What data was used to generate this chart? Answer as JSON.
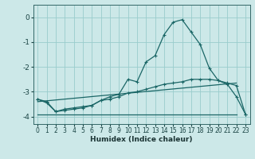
{
  "xlabel": "Humidex (Indice chaleur)",
  "bg_color": "#cce8e8",
  "grid_color": "#99cccc",
  "line_color": "#1a6666",
  "xlim": [
    -0.5,
    23.5
  ],
  "ylim": [
    -4.3,
    0.5
  ],
  "yticks": [
    0,
    -1,
    -2,
    -3,
    -4
  ],
  "xticks": [
    0,
    1,
    2,
    3,
    4,
    5,
    6,
    7,
    8,
    9,
    10,
    11,
    12,
    13,
    14,
    15,
    16,
    17,
    18,
    19,
    20,
    21,
    22,
    23
  ],
  "curve1_x": [
    0,
    1,
    2,
    3,
    4,
    5,
    6,
    7,
    8,
    9,
    10,
    11,
    12,
    13,
    14,
    15,
    16,
    17,
    18,
    19,
    20,
    21,
    22,
    23
  ],
  "curve1_y": [
    -3.3,
    -3.4,
    -3.8,
    -3.7,
    -3.65,
    -3.6,
    -3.55,
    -3.35,
    -3.3,
    -3.2,
    -3.05,
    -3.0,
    -2.9,
    -2.8,
    -2.7,
    -2.65,
    -2.6,
    -2.5,
    -2.5,
    -2.5,
    -2.55,
    -2.65,
    -2.75,
    -3.9
  ],
  "curve2_x": [
    0,
    1,
    2,
    3,
    4,
    5,
    6,
    7,
    8,
    9,
    10,
    11,
    12,
    13,
    14,
    15,
    16,
    17,
    18,
    19,
    20,
    21,
    22,
    23
  ],
  "curve2_y": [
    -3.3,
    -3.45,
    -3.8,
    -3.75,
    -3.7,
    -3.65,
    -3.55,
    -3.35,
    -3.2,
    -3.1,
    -2.5,
    -2.6,
    -1.8,
    -1.55,
    -0.7,
    -0.2,
    -0.1,
    -0.6,
    -1.1,
    -2.05,
    -2.55,
    -2.7,
    -3.2,
    -3.9
  ],
  "curve3_x": [
    0,
    22
  ],
  "curve3_y": [
    -3.9,
    -3.9
  ],
  "curve4_x": [
    0,
    22
  ],
  "curve4_y": [
    -3.4,
    -2.65
  ]
}
